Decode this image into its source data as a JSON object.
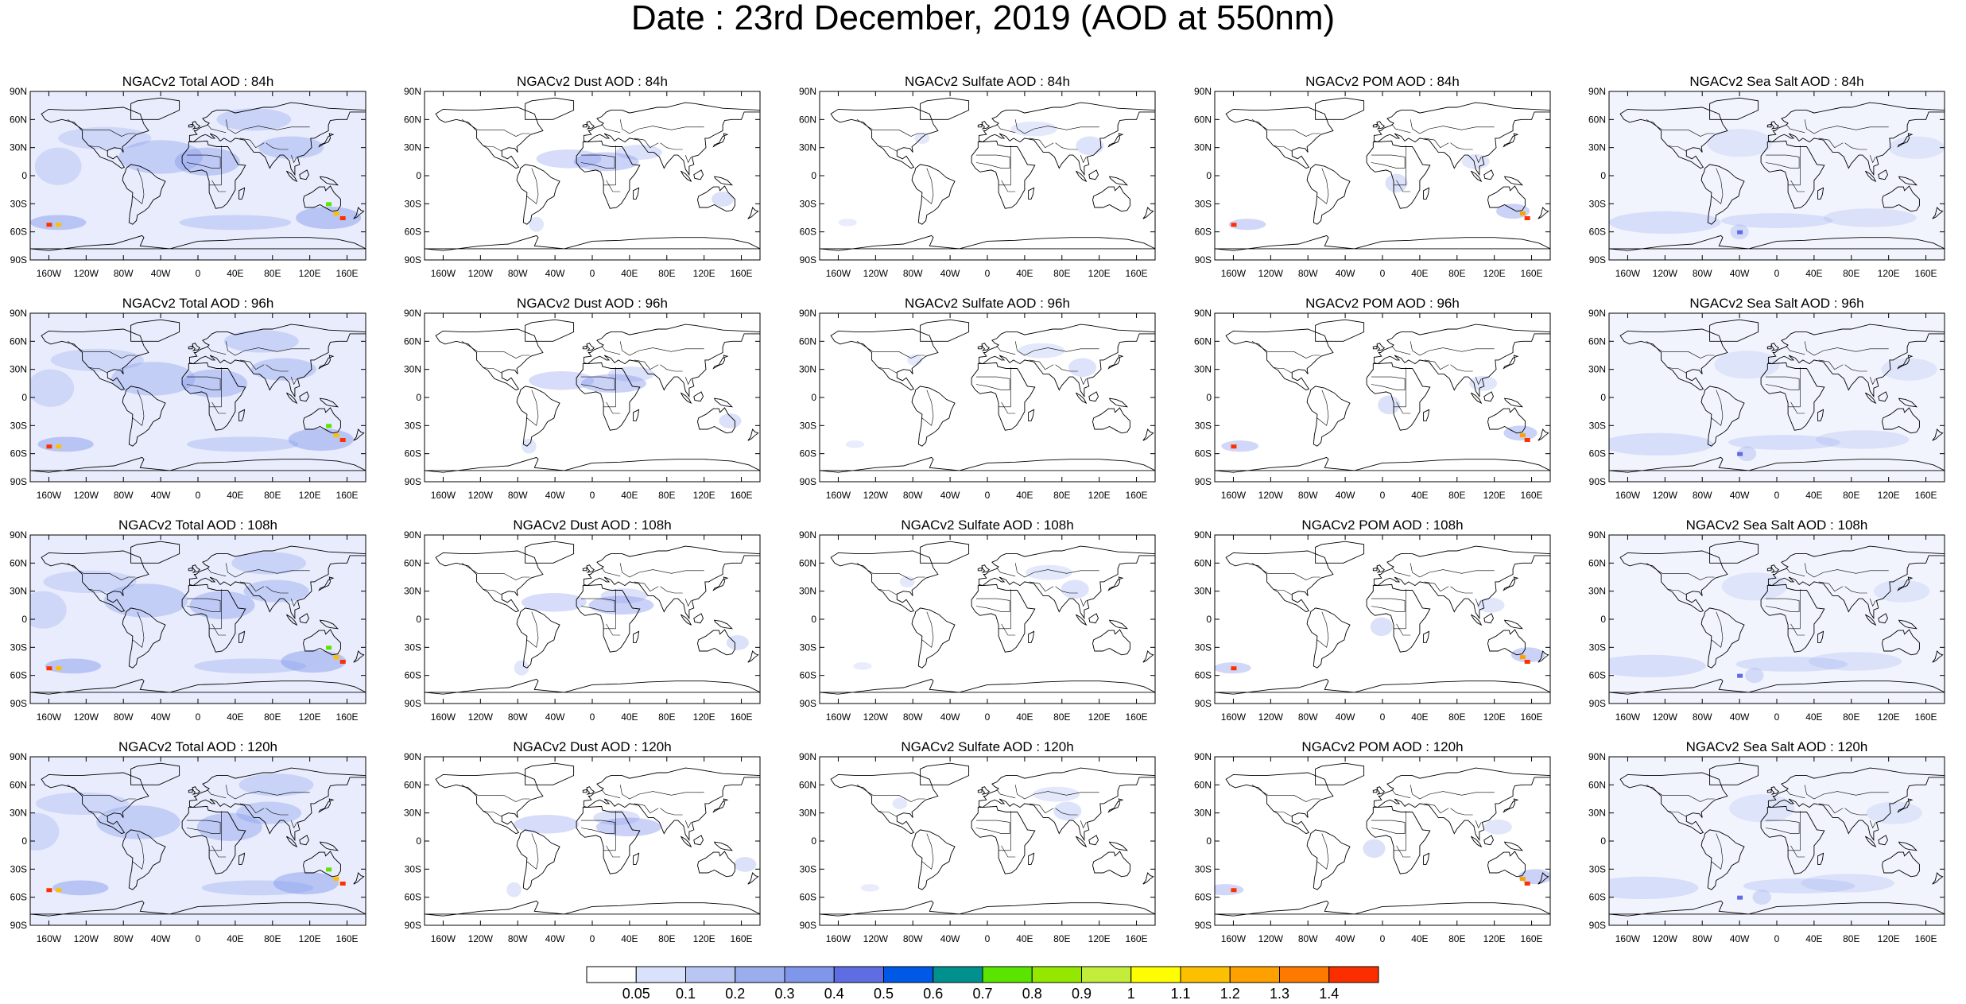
{
  "title": "Date : 23rd December, 2019 (AOD at 550nm)",
  "lat_labels": [
    "90N",
    "60N",
    "30N",
    "0",
    "30S",
    "60S",
    "90S"
  ],
  "lon_labels": [
    "160W",
    "120W",
    "80W",
    "40W",
    "0",
    "40E",
    "80E",
    "120E",
    "160E"
  ],
  "rows": [
    {
      "titles": [
        "NGACv2 Total AOD : 84h",
        "NGACv2 Dust AOD : 84h",
        "NGACv2 Sulfate AOD : 84h",
        "NGACv2 POM AOD : 84h",
        "NGACv2 Sea Salt AOD : 84h"
      ]
    },
    {
      "titles": [
        "NGACv2 Total AOD : 96h",
        "NGACv2 Dust AOD : 96h",
        "NGACv2 Sulfate AOD : 96h",
        "NGACv2 POM AOD : 96h",
        "NGACv2 Sea Salt AOD : 96h"
      ]
    },
    {
      "titles": [
        "NGACv2 Total AOD : 108h",
        "NGACv2 Dust AOD : 108h",
        "NGACv2 Sulfate AOD : 108h",
        "NGACv2 POM AOD : 108h",
        "NGACv2 Sea Salt AOD : 108h"
      ]
    },
    {
      "titles": [
        "NGACv2 Total AOD : 120h",
        "NGACv2 Dust AOD : 120h",
        "NGACv2 Sulfate AOD : 120h",
        "NGACv2 POM AOD : 120h",
        "NGACv2 Sea Salt  AOD : 120h"
      ]
    }
  ],
  "colorbar": {
    "labels": [
      "0.05",
      "0.1",
      "0.2",
      "0.3",
      "0.4",
      "0.5",
      "0.6",
      "0.7",
      "0.8",
      "0.9",
      "1",
      "1.1",
      "1.2",
      "1.3",
      "1.4"
    ],
    "colors": [
      "#ffffff",
      "#d9e1fb",
      "#b9c6f4",
      "#9aaeee",
      "#8096ea",
      "#5e6ee2",
      "#0059e6",
      "#00918f",
      "#59e500",
      "#94e800",
      "#c2ed3b",
      "#fefe00",
      "#fdc000",
      "#fda000",
      "#fd7900",
      "#fb2e00"
    ]
  }
}
